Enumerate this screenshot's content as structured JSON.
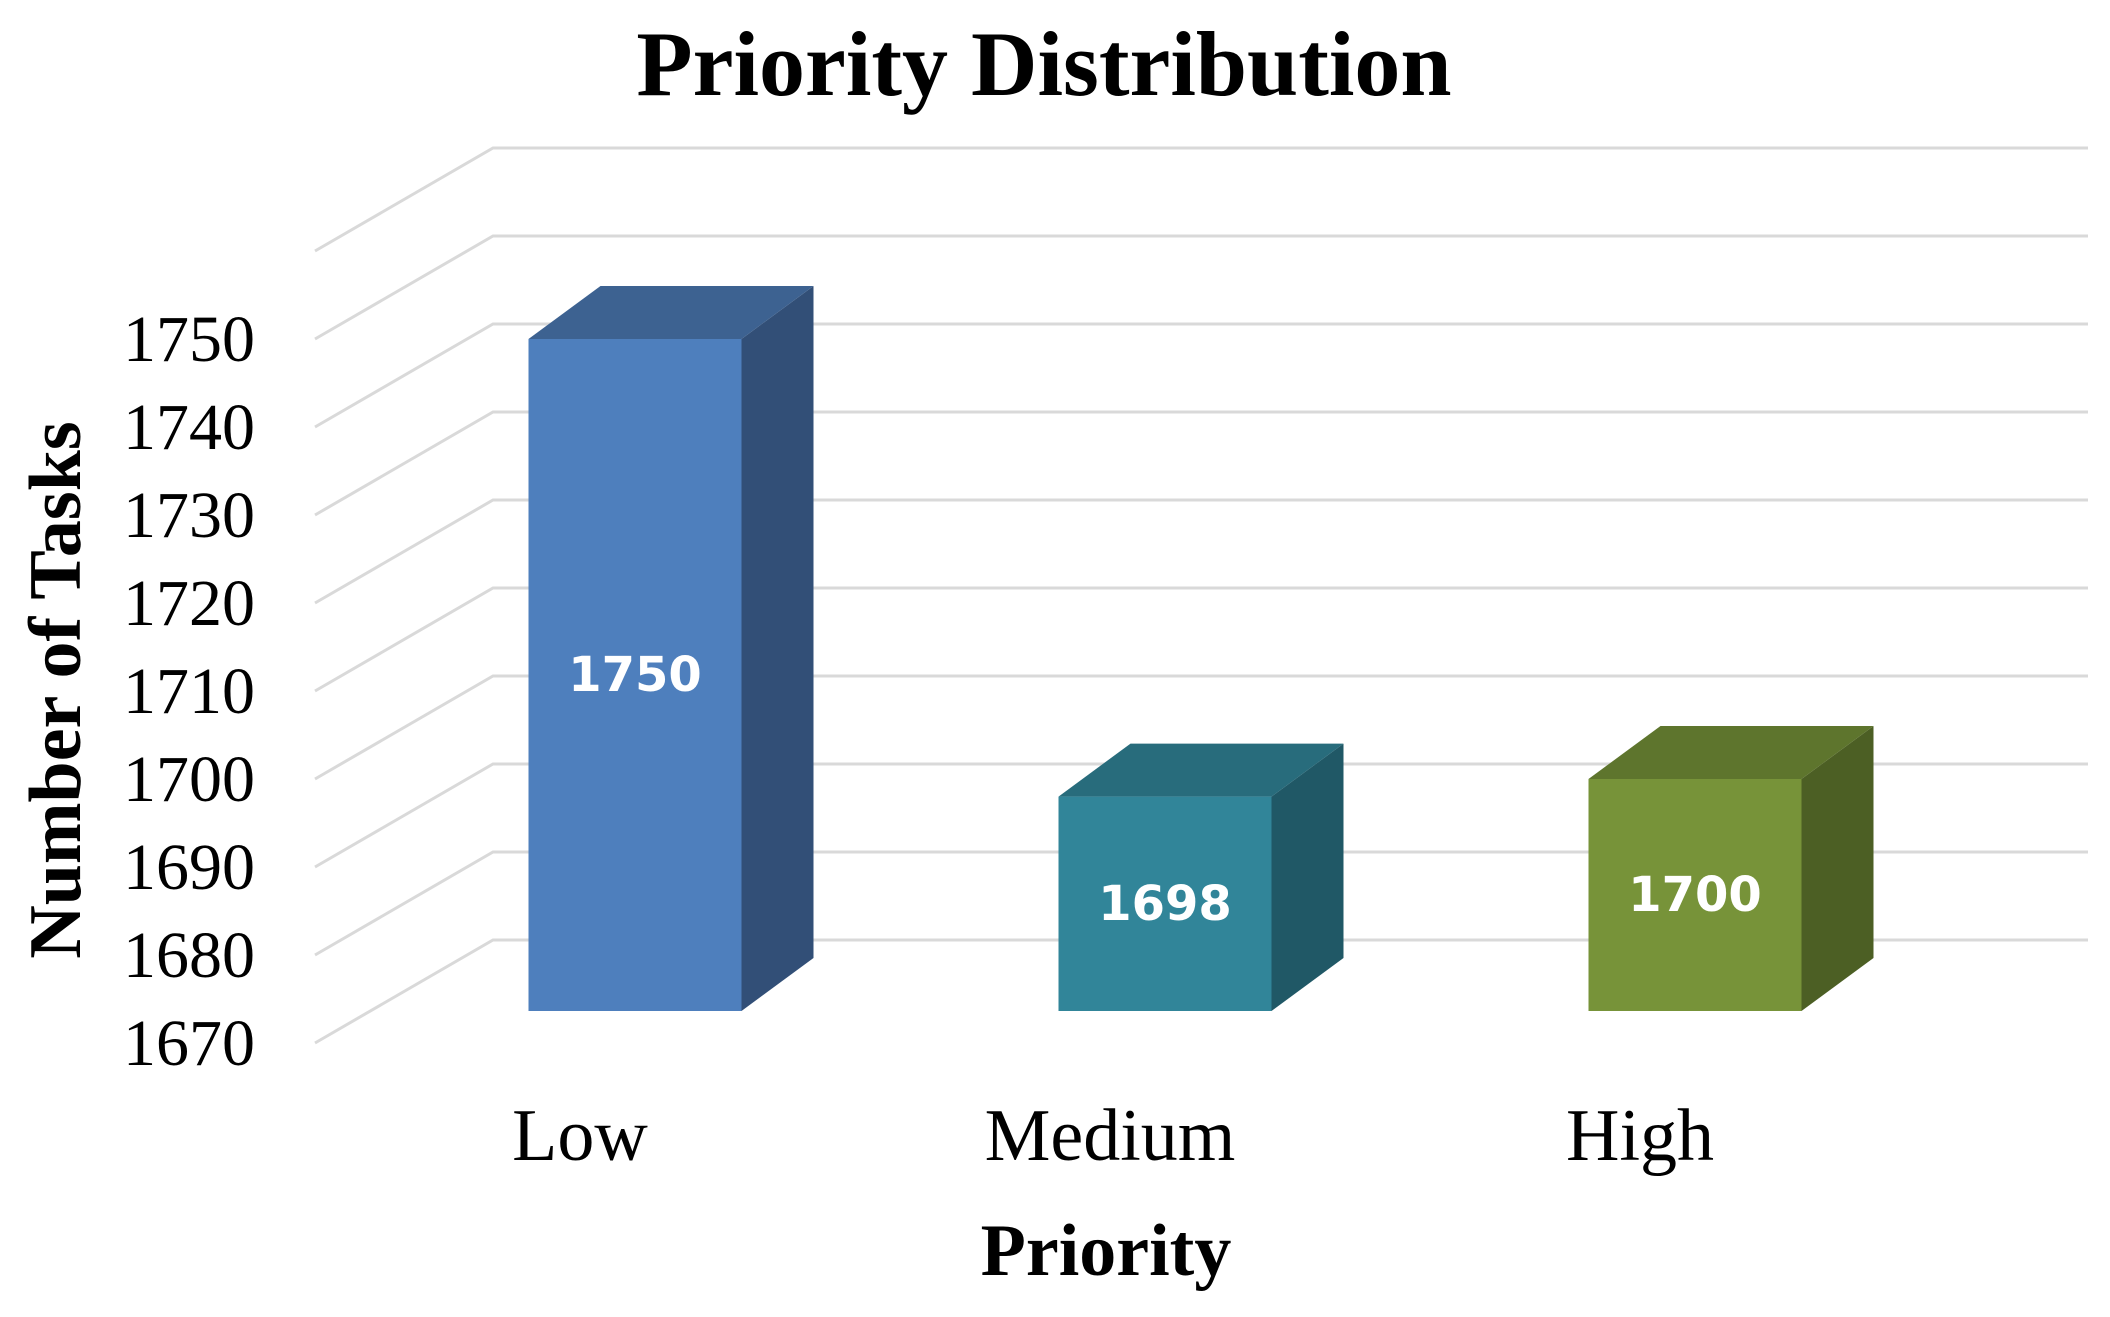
{
  "chart_data": {
    "type": "bar",
    "title": "Priority Distribution",
    "xlabel": "Priority",
    "ylabel": "Number of Tasks",
    "categories": [
      "Low",
      "Medium",
      "High"
    ],
    "values": [
      1750,
      1698,
      1700
    ],
    "data_labels": [
      "1750",
      "1698",
      "1700"
    ],
    "ylim": [
      1670,
      1760
    ],
    "yticks": [
      "1670",
      "1680",
      "1690",
      "1700",
      "1710",
      "1720",
      "1730",
      "1740",
      "1750"
    ],
    "grid": true,
    "style": "3d-column",
    "colors": {
      "Low": {
        "front": "#4e7fbd",
        "side": "#324f77",
        "top": "#3d6291"
      },
      "Medium": {
        "front": "#318599",
        "side": "#205866",
        "top": "#286c7c"
      },
      "High": {
        "front": "#779339",
        "side": "#4c5f24",
        "top": "#5e752d"
      }
    }
  }
}
